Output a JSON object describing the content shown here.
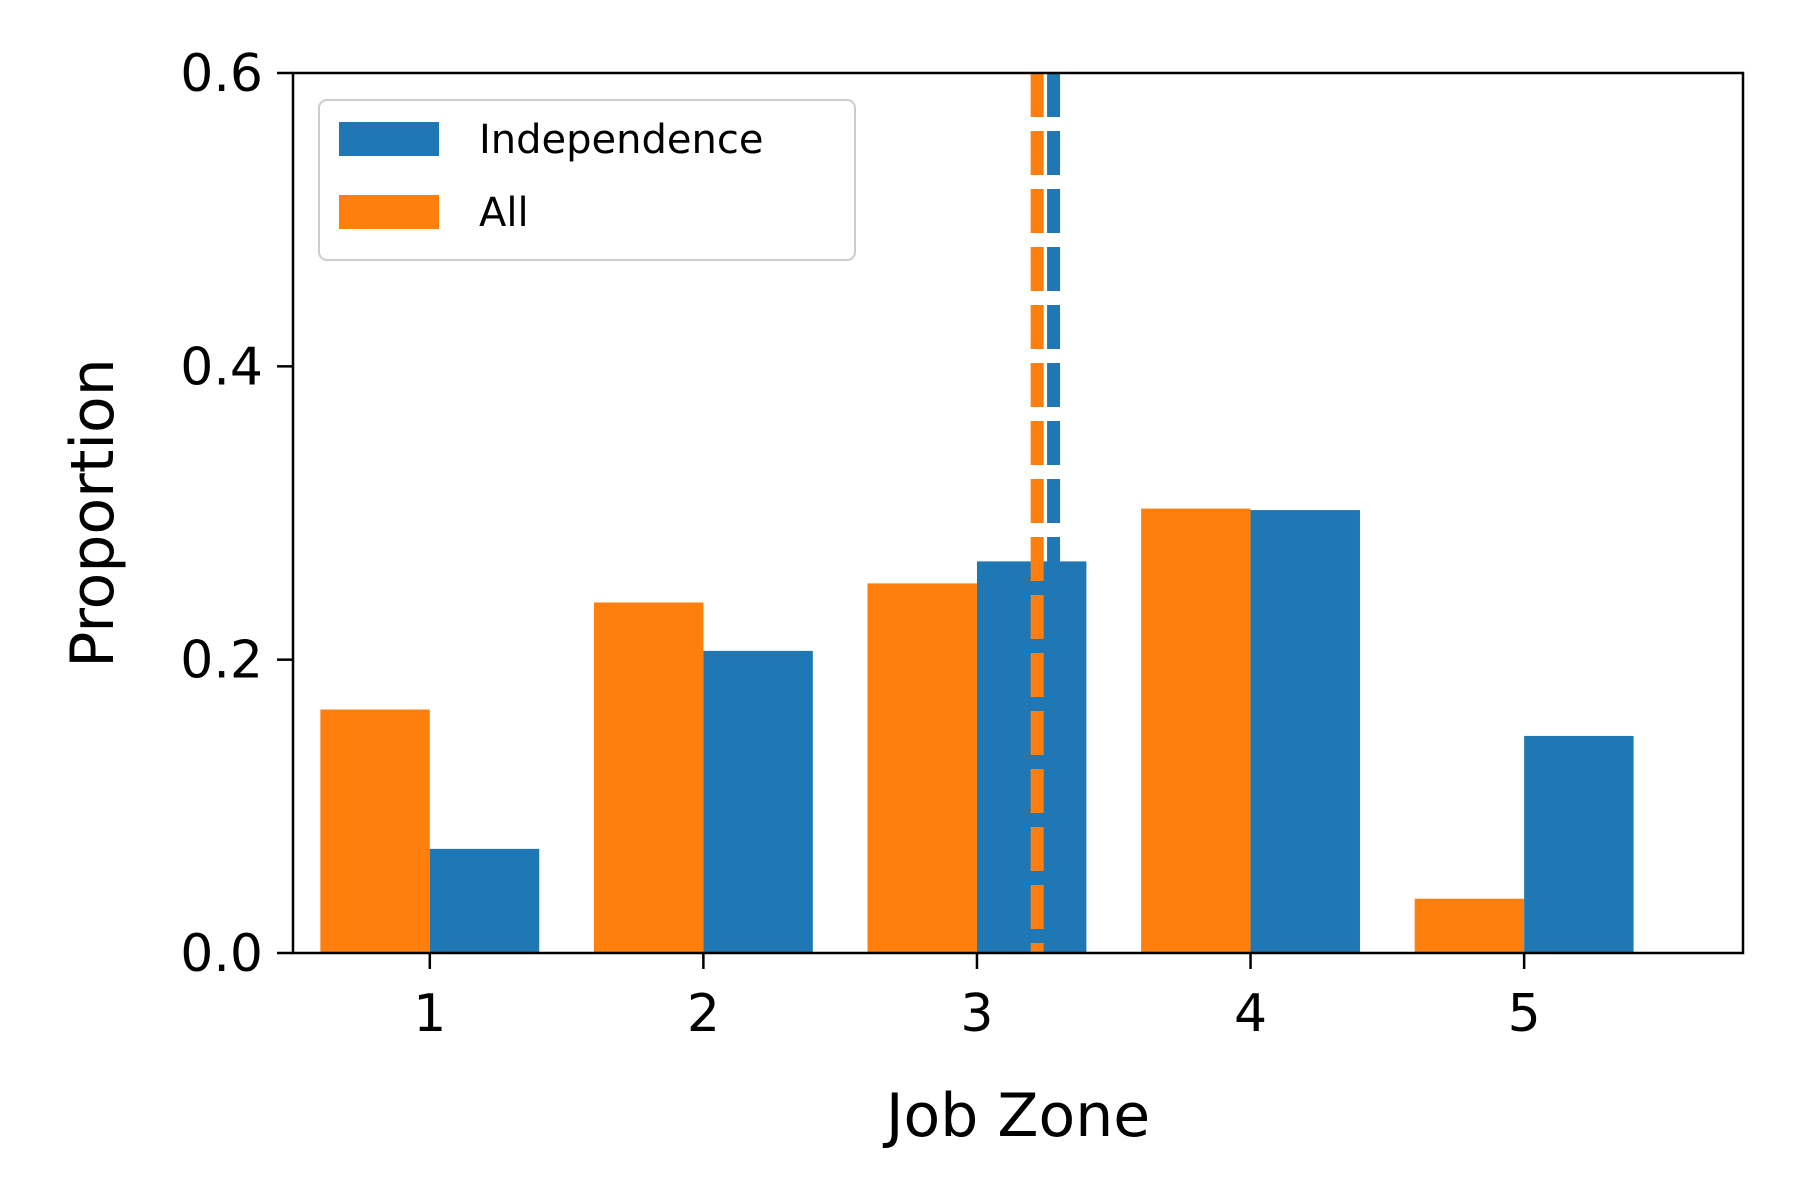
{
  "chart_data": {
    "type": "bar",
    "categories": [
      "1",
      "2",
      "3",
      "4",
      "5"
    ],
    "series": [
      {
        "name": "All",
        "color": "#ff7f0e",
        "values": [
          0.166,
          0.239,
          0.252,
          0.303,
          0.037
        ]
      },
      {
        "name": "Independence",
        "color": "#1f77b4",
        "values": [
          0.071,
          0.206,
          0.267,
          0.302,
          0.148
        ]
      }
    ],
    "reference_lines": [
      {
        "series": "All",
        "x": 3.22,
        "style": "dashed",
        "color": "#ff7f0e"
      },
      {
        "series": "Independence",
        "x": 3.28,
        "style": "dashed",
        "color": "#1f77b4"
      }
    ],
    "xlabel": "Job Zone",
    "ylabel": "Proportion",
    "ylim": [
      0,
      0.6
    ],
    "yticks": [
      "0.0",
      "0.2",
      "0.4",
      "0.6"
    ],
    "xlim": [
      0.5,
      5.8
    ],
    "legend": {
      "placement": "top-left",
      "entries": [
        "Independence",
        "All"
      ]
    },
    "grid": false
  }
}
